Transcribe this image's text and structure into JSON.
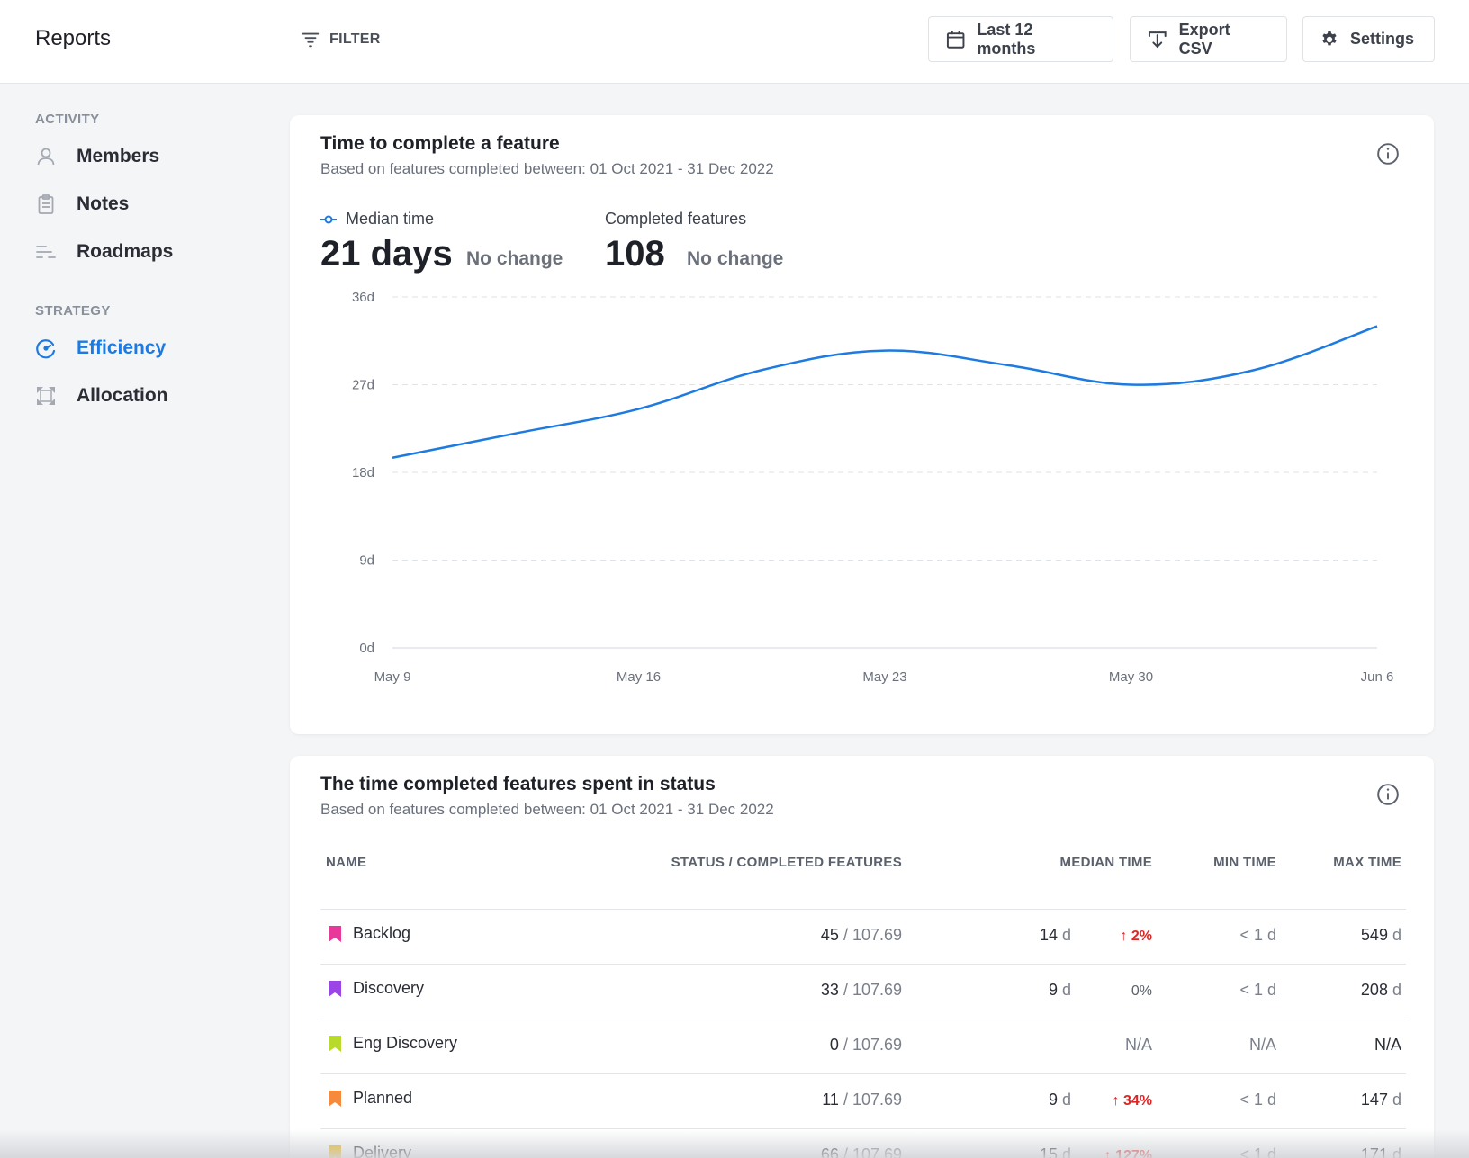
{
  "header": {
    "title": "Reports",
    "filter_label": "FILTER",
    "range_label": "Last 12 months",
    "export_label": "Export CSV",
    "settings_label": "Settings"
  },
  "sidebar": {
    "sections": [
      {
        "label": "ACTIVITY",
        "items": [
          {
            "label": "Members",
            "icon": "user-icon"
          },
          {
            "label": "Notes",
            "icon": "clipboard-icon"
          },
          {
            "label": "Roadmaps",
            "icon": "roadmap-icon"
          }
        ]
      },
      {
        "label": "STRATEGY",
        "items": [
          {
            "label": "Efficiency",
            "icon": "gauge-icon",
            "active": true
          },
          {
            "label": "Allocation",
            "icon": "allocation-icon"
          }
        ]
      }
    ]
  },
  "card1": {
    "title": "Time to complete a feature",
    "subtitle": "Based on features completed between: 01 Oct 2021 - 31 Dec 2022",
    "metrics": [
      {
        "label": "Median time",
        "value": "21 days",
        "change": "No change"
      },
      {
        "label": "Completed features",
        "value": "108",
        "change": "No change"
      }
    ],
    "accent": "#1d7ae0"
  },
  "chart_data": {
    "type": "line",
    "title": "",
    "xlabel": "",
    "ylabel": "",
    "x": [
      "May 9",
      "May 12",
      "May 16",
      "May 19",
      "May 23",
      "May 26",
      "May 30",
      "Jun 2",
      "Jun 6"
    ],
    "series": [
      {
        "values": [
          19.5,
          22,
          24.5,
          28.5,
          30.5,
          29,
          27,
          28.5,
          33
        ]
      }
    ],
    "x_ticks": [
      "May 9",
      "May 16",
      "May 23",
      "May 30",
      "Jun 6"
    ],
    "y_ticks": [
      "0d",
      "9d",
      "18d",
      "27d",
      "36d"
    ],
    "ylim": [
      0,
      36
    ],
    "grid": true,
    "color": "#1d7ae0"
  },
  "card2": {
    "title": "The time completed features spent in status",
    "subtitle": "Based on features completed between: 01 Oct 2021 - 31 Dec 2022",
    "columns": [
      "NAME",
      "STATUS / COMPLETED FEATURES",
      "MEDIAN TIME",
      "MIN TIME",
      "MAX TIME"
    ],
    "rows": [
      {
        "name": "Backlog",
        "color": "#e8399b",
        "count": "45",
        "total": "/ 107.69",
        "median": "14",
        "median_unit": "d",
        "trend": "2%",
        "trend_dir": "up",
        "min": "< 1",
        "min_unit": "d",
        "max": "549",
        "max_unit": "d"
      },
      {
        "name": "Discovery",
        "color": "#9b45e6",
        "count": "33",
        "total": "/ 107.69",
        "median": "9",
        "median_unit": "d",
        "trend": "0%",
        "trend_dir": "flat",
        "min": "< 1",
        "min_unit": "d",
        "max": "208",
        "max_unit": "d"
      },
      {
        "name": "Eng Discovery",
        "color": "#b8db2b",
        "count": "0",
        "total": "/ 107.69",
        "median": "N/A",
        "median_unit": "",
        "trend": "",
        "trend_dir": "none",
        "min": "N/A",
        "min_unit": "",
        "max": "N/A",
        "max_unit": ""
      },
      {
        "name": "Planned",
        "color": "#f58a3c",
        "count": "11",
        "total": "/ 107.69",
        "median": "9",
        "median_unit": "d",
        "trend": "34%",
        "trend_dir": "up",
        "min": "< 1",
        "min_unit": "d",
        "max": "147",
        "max_unit": "d"
      },
      {
        "name": "Delivery",
        "color": "#f0b400",
        "count": "66",
        "total": "/ 107.69",
        "median": "15",
        "median_unit": "d",
        "trend": "127%",
        "trend_dir": "up",
        "min": "< 1",
        "min_unit": "d",
        "max": "171",
        "max_unit": "d"
      }
    ]
  }
}
